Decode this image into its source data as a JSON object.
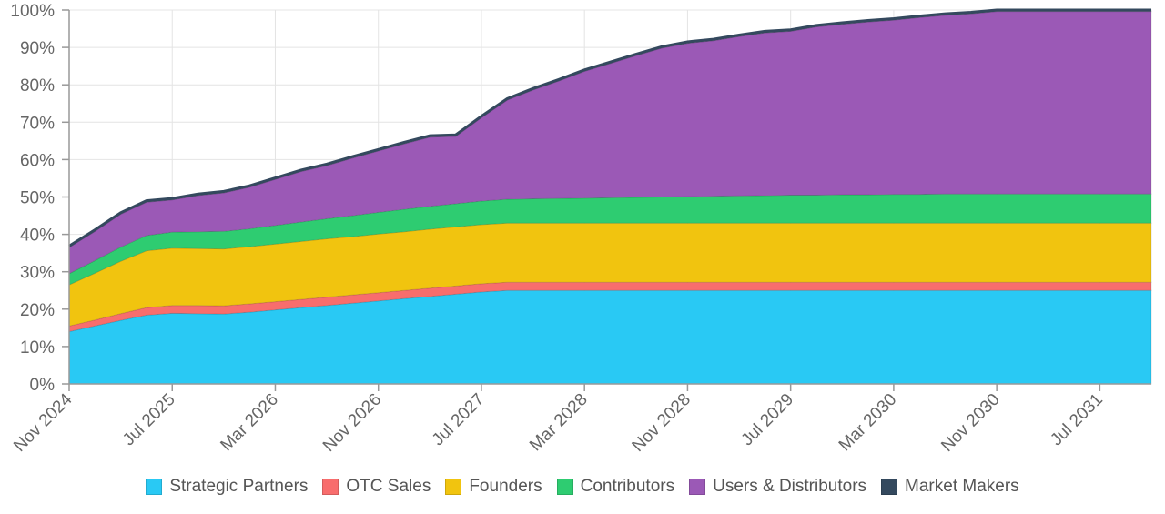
{
  "chart_data": {
    "type": "area",
    "stacked": true,
    "x": [
      "Nov 2024",
      "Jan 2025",
      "Mar 2025",
      "May 2025",
      "Jul 2025",
      "Sep 2025",
      "Nov 2025",
      "Jan 2026",
      "Mar 2026",
      "May 2026",
      "Jul 2026",
      "Sep 2026",
      "Nov 2026",
      "Jan 2027",
      "Mar 2027",
      "May 2027",
      "Jul 2027",
      "Sep 2027",
      "Nov 2027",
      "Jan 2028",
      "Mar 2028",
      "May 2028",
      "Jul 2028",
      "Sep 2028",
      "Nov 2028",
      "Jan 2029",
      "Mar 2029",
      "May 2029",
      "Jul 2029",
      "Sep 2029",
      "Nov 2029",
      "Jan 2030",
      "Mar 2030",
      "May 2030",
      "Jul 2030",
      "Sep 2030",
      "Nov 2030",
      "Jan 2031",
      "Mar 2031",
      "May 2031",
      "Jul 2031",
      "Sep 2031",
      "Oct 2031"
    ],
    "x_tick_labels": [
      "Nov 2024",
      "Jul 2025",
      "Mar 2026",
      "Nov 2026",
      "Jul 2027",
      "Mar 2028",
      "Nov 2028",
      "Jul 2029",
      "Mar 2030",
      "Nov 2030",
      "Jul 2031"
    ],
    "y_tick_labels": [
      "0%",
      "10%",
      "20%",
      "30%",
      "40%",
      "50%",
      "60%",
      "70%",
      "80%",
      "90%",
      "100%"
    ],
    "ylim": [
      0,
      100
    ],
    "ylabel": "",
    "xlabel": "",
    "title": "",
    "legend_position": "bottom",
    "series": [
      {
        "name": "Strategic Partners",
        "color": "#29c9f4",
        "values": [
          14.0,
          15.5,
          17.0,
          18.4,
          18.9,
          18.8,
          18.7,
          19.2,
          19.8,
          20.4,
          21.0,
          21.6,
          22.2,
          22.8,
          23.4,
          24.0,
          24.6,
          25.0,
          25.0,
          25.0,
          25.0,
          25.0,
          25.0,
          25.0,
          25.0,
          25.0,
          25.0,
          25.0,
          25.0,
          25.0,
          25.0,
          25.0,
          25.0,
          25.0,
          25.0,
          25.0,
          25.0,
          25.0,
          25.0,
          25.0,
          25.0,
          25.0,
          25.0
        ]
      },
      {
        "name": "OTC Sales",
        "color": "#f86d6d",
        "values": [
          1.5,
          1.6,
          1.8,
          2.0,
          2.1,
          2.2,
          2.2,
          2.2,
          2.2,
          2.2,
          2.2,
          2.2,
          2.2,
          2.2,
          2.2,
          2.2,
          2.2,
          2.2,
          2.2,
          2.2,
          2.2,
          2.2,
          2.2,
          2.2,
          2.2,
          2.2,
          2.2,
          2.2,
          2.2,
          2.2,
          2.2,
          2.2,
          2.2,
          2.2,
          2.2,
          2.2,
          2.2,
          2.2,
          2.2,
          2.2,
          2.2,
          2.2,
          2.2
        ]
      },
      {
        "name": "Founders",
        "color": "#f1c40f",
        "values": [
          11.0,
          12.5,
          14.0,
          15.2,
          15.3,
          15.2,
          15.2,
          15.3,
          15.4,
          15.5,
          15.6,
          15.6,
          15.7,
          15.7,
          15.8,
          15.8,
          15.8,
          15.8,
          15.8,
          15.8,
          15.8,
          15.8,
          15.8,
          15.8,
          15.8,
          15.8,
          15.8,
          15.8,
          15.8,
          15.8,
          15.8,
          15.8,
          15.8,
          15.8,
          15.8,
          15.8,
          15.8,
          15.8,
          15.8,
          15.8,
          15.8,
          15.8,
          15.8
        ]
      },
      {
        "name": "Contributors",
        "color": "#2ecc71",
        "values": [
          3.0,
          3.4,
          3.8,
          4.1,
          4.3,
          4.5,
          4.7,
          4.8,
          5.0,
          5.2,
          5.4,
          5.6,
          5.8,
          6.0,
          6.1,
          6.2,
          6.3,
          6.4,
          6.5,
          6.6,
          6.7,
          6.8,
          6.9,
          7.0,
          7.1,
          7.2,
          7.3,
          7.4,
          7.5,
          7.5,
          7.6,
          7.6,
          7.7,
          7.7,
          7.8,
          7.8,
          7.8,
          7.8,
          7.8,
          7.8,
          7.8,
          7.8,
          7.8
        ]
      },
      {
        "name": "Users & Distributors",
        "color": "#9b59b6",
        "values": [
          7.0,
          7.8,
          8.8,
          8.9,
          8.6,
          9.7,
          10.3,
          11.1,
          12.3,
          13.5,
          14.2,
          15.4,
          16.4,
          17.5,
          18.5,
          18.0,
          22.3,
          26.5,
          29.1,
          31.4,
          33.9,
          35.9,
          37.9,
          39.8,
          41.0,
          41.6,
          42.6,
          43.5,
          43.8,
          45.0,
          45.6,
          46.2,
          46.6,
          47.3,
          47.8,
          48.2,
          48.8,
          48.8,
          48.8,
          48.8,
          48.8,
          48.8,
          48.8
        ]
      },
      {
        "name": "Market Makers",
        "color": "#34495e",
        "values": [
          0.4,
          0.4,
          0.4,
          0.4,
          0.4,
          0.4,
          0.4,
          0.4,
          0.4,
          0.4,
          0.4,
          0.4,
          0.4,
          0.4,
          0.4,
          0.4,
          0.4,
          0.4,
          0.4,
          0.4,
          0.4,
          0.4,
          0.4,
          0.4,
          0.4,
          0.4,
          0.4,
          0.4,
          0.4,
          0.4,
          0.4,
          0.4,
          0.4,
          0.4,
          0.4,
          0.4,
          0.4,
          0.4,
          0.4,
          0.4,
          0.4,
          0.4,
          0.4
        ]
      }
    ]
  }
}
